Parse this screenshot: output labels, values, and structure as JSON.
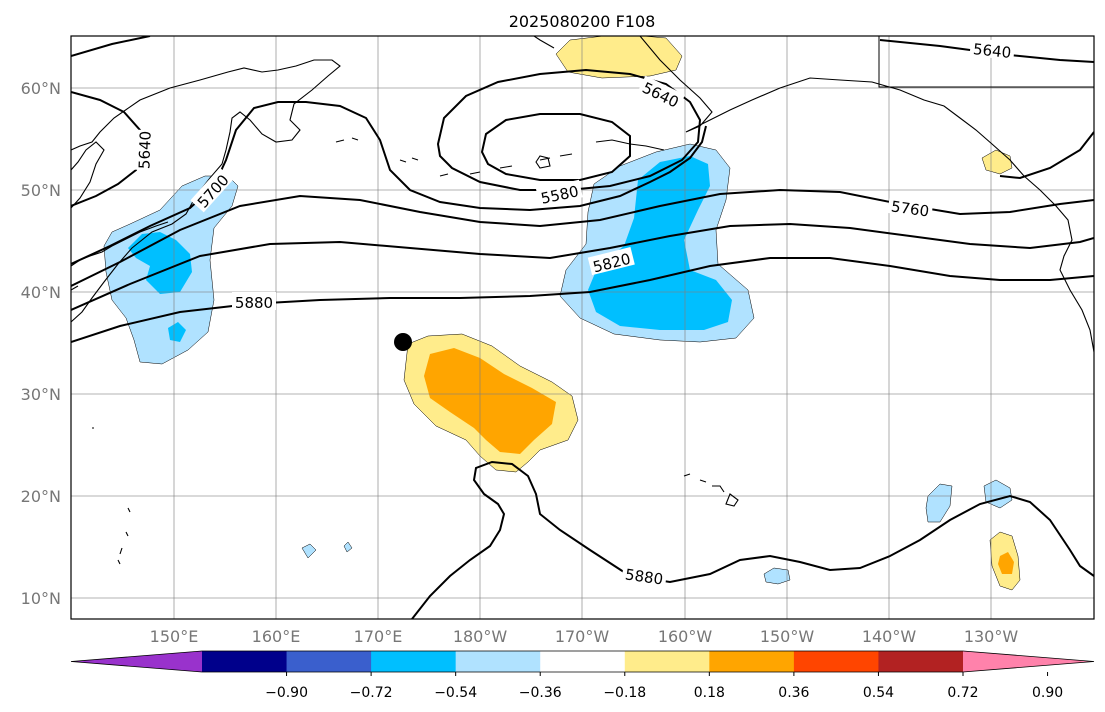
{
  "title": "2025080200 F108",
  "lat_labels": [
    "60°N",
    "50°N",
    "40°N",
    "30°N",
    "20°N",
    "10°N"
  ],
  "lon_labels": [
    "150°E",
    "160°E",
    "170°E",
    "180°W",
    "170°W",
    "160°W",
    "150°W",
    "140°W",
    "130°W"
  ],
  "colorbar": {
    "tick_labels": [
      "−0.90",
      "−0.72",
      "−0.54",
      "−0.36",
      "−0.18",
      "0.18",
      "0.36",
      "0.54",
      "0.72",
      "0.90"
    ],
    "colors": [
      "#9932cc",
      "#00008b",
      "#3a5fcd",
      "#00bfff",
      "#b0e2ff",
      "#ffffff",
      "#ffec8b",
      "#ffa500",
      "#ff4500",
      "#b22222",
      "#ff82ab"
    ]
  },
  "contour_labels": [
    "5640",
    "5640",
    "5640",
    "5700",
    "5580",
    "5760",
    "5820",
    "5880",
    "5880"
  ]
}
